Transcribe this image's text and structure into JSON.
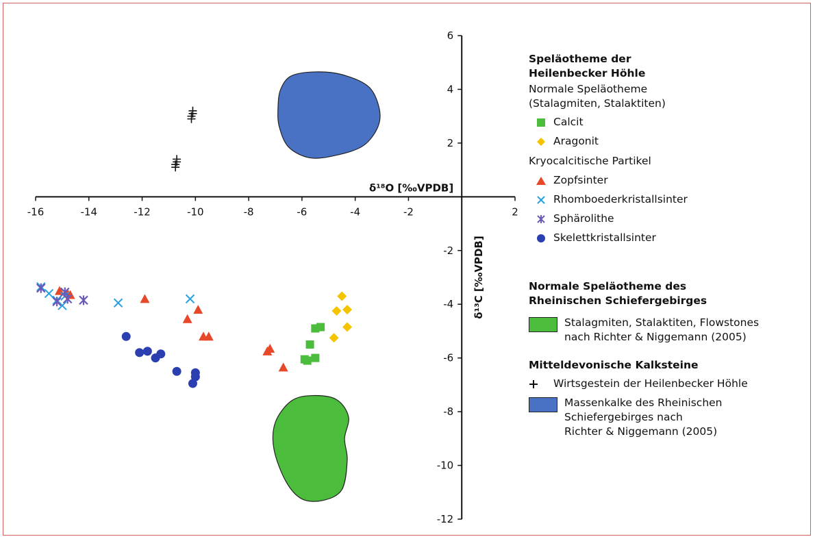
{
  "chart_data": {
    "type": "scatter",
    "xlabel": "δ¹⁸O [‰VPDB]",
    "ylabel": "δ¹³C [‰VPDB]",
    "xlim": [
      -16,
      2
    ],
    "ylim": [
      -12,
      6
    ],
    "xticks": [
      -16,
      -14,
      -12,
      -10,
      -8,
      -6,
      -4,
      -2,
      2
    ],
    "yticks": [
      6,
      4,
      2,
      -2,
      -4,
      -6,
      -8,
      -10,
      -12
    ],
    "grid": false,
    "legend_position": "right",
    "series": [
      {
        "name": "Calcit",
        "marker": "square",
        "color": "#4cbc3c",
        "points": [
          [
            -5.5,
            -4.9
          ],
          [
            -5.3,
            -4.85
          ],
          [
            -5.7,
            -5.5
          ],
          [
            -5.5,
            -6.0
          ],
          [
            -5.9,
            -6.05
          ],
          [
            -5.8,
            -6.1
          ]
        ]
      },
      {
        "name": "Aragonit",
        "marker": "diamond",
        "color": "#f5c400",
        "points": [
          [
            -4.5,
            -3.7
          ],
          [
            -4.7,
            -4.25
          ],
          [
            -4.3,
            -4.2
          ],
          [
            -4.3,
            -4.85
          ],
          [
            -4.8,
            -5.25
          ]
        ]
      },
      {
        "name": "Zopfsinter",
        "marker": "triangle",
        "color": "#e8482a",
        "points": [
          [
            -15.1,
            -3.5
          ],
          [
            -14.8,
            -3.6
          ],
          [
            -14.7,
            -3.65
          ],
          [
            -11.9,
            -3.8
          ],
          [
            -9.9,
            -4.2
          ],
          [
            -10.3,
            -4.55
          ],
          [
            -9.7,
            -5.2
          ],
          [
            -9.5,
            -5.2
          ],
          [
            -7.2,
            -5.65
          ],
          [
            -7.3,
            -5.75
          ],
          [
            -6.7,
            -6.35
          ]
        ]
      },
      {
        "name": "Rhomboederkristallsinter",
        "marker": "x",
        "color": "#2aa0e0",
        "points": [
          [
            -15.8,
            -3.35
          ],
          [
            -15.5,
            -3.6
          ],
          [
            -15.2,
            -3.85
          ],
          [
            -15.0,
            -4.05
          ],
          [
            -14.9,
            -3.7
          ],
          [
            -12.9,
            -3.95
          ],
          [
            -10.2,
            -3.8
          ]
        ]
      },
      {
        "name": "Sphärolithe",
        "marker": "asterisk",
        "color": "#6a5ab8",
        "points": [
          [
            -15.8,
            -3.4
          ],
          [
            -15.2,
            -3.9
          ],
          [
            -14.9,
            -3.55
          ],
          [
            -14.8,
            -3.8
          ],
          [
            -14.2,
            -3.85
          ]
        ]
      },
      {
        "name": "Skelettkristallsinter",
        "marker": "circle",
        "color": "#2b3fb0",
        "points": [
          [
            -12.6,
            -5.2
          ],
          [
            -12.1,
            -5.8
          ],
          [
            -11.8,
            -5.75
          ],
          [
            -11.5,
            -6.0
          ],
          [
            -11.3,
            -5.85
          ],
          [
            -10.7,
            -6.5
          ],
          [
            -10.0,
            -6.55
          ],
          [
            -10.0,
            -6.7
          ],
          [
            -10.1,
            -6.95
          ]
        ]
      },
      {
        "name": "Wirtsgestein der Heilenbecker Höhle",
        "marker": "cross",
        "color": "#111111",
        "points": [
          [
            -10.1,
            3.15
          ],
          [
            -10.15,
            2.95
          ],
          [
            -10.7,
            1.35
          ],
          [
            -10.75,
            1.15
          ]
        ]
      }
    ],
    "regions": [
      {
        "name": "Massenkalke des Rheinischen Schiefergebirges nach Richter & Niggemann (2005)",
        "color": "#4a72c4",
        "outline": [
          [
            -6.8,
            4.0
          ],
          [
            -6.4,
            4.5
          ],
          [
            -5.5,
            4.65
          ],
          [
            -4.5,
            4.55
          ],
          [
            -3.5,
            4.1
          ],
          [
            -3.1,
            3.3
          ],
          [
            -3.15,
            2.6
          ],
          [
            -3.7,
            1.9
          ],
          [
            -4.7,
            1.55
          ],
          [
            -5.7,
            1.45
          ],
          [
            -6.5,
            1.85
          ],
          [
            -6.85,
            2.6
          ],
          [
            -6.9,
            3.3
          ]
        ]
      },
      {
        "name": "Stalagmiten, Stalaktiten, Flowstones nach Richter & Niggemann (2005)",
        "color": "#4cbc3c",
        "outline": [
          [
            -6.4,
            -7.6
          ],
          [
            -5.6,
            -7.4
          ],
          [
            -4.7,
            -7.55
          ],
          [
            -4.25,
            -8.2
          ],
          [
            -4.4,
            -9.0
          ],
          [
            -4.3,
            -9.8
          ],
          [
            -4.5,
            -10.9
          ],
          [
            -5.2,
            -11.3
          ],
          [
            -6.0,
            -11.25
          ],
          [
            -6.6,
            -10.6
          ],
          [
            -7.05,
            -9.4
          ],
          [
            -7.0,
            -8.4
          ]
        ]
      }
    ]
  },
  "legend": {
    "group1_title": "Speläotheme der\nHeilenbecker Höhle",
    "group1_sub1": "Normale Speläotheme\n(Stalagmiten, Stalaktiten)",
    "calcit": "Calcit",
    "aragonit": "Aragonit",
    "group1_sub2": "Kryocalcitische Partikel",
    "zopfsinter": "Zopfsinter",
    "rhombo": "Rhomboederkristallsinter",
    "sphaero": "Sphärolithe",
    "skelett": "Skelettkristallsinter",
    "group2_title": "Normale Speläotheme des\nRheinischen Schiefergebirges",
    "flowstones": "Stalagmiten, Stalaktiten, Flowstones\nnach Richter & Niggemann (2005)",
    "group3_title": "Mitteldevonische Kalksteine",
    "wirtsgestein": "Wirtsgestein der Heilenbecker Höhle",
    "massenkalke": "Massenkalke des Rheinischen\nSchiefergebirges nach\nRichter & Niggemann (2005)"
  },
  "colors": {
    "green": "#4cbc3c",
    "blue": "#4a72c4",
    "calcit": "#4cbc3c",
    "aragonit": "#f5c400",
    "zopfsinter": "#e8482a",
    "rhombo": "#2aa0e0",
    "sphaero": "#6a5ab8",
    "skelett": "#2b3fb0",
    "frame": "#d06060"
  }
}
